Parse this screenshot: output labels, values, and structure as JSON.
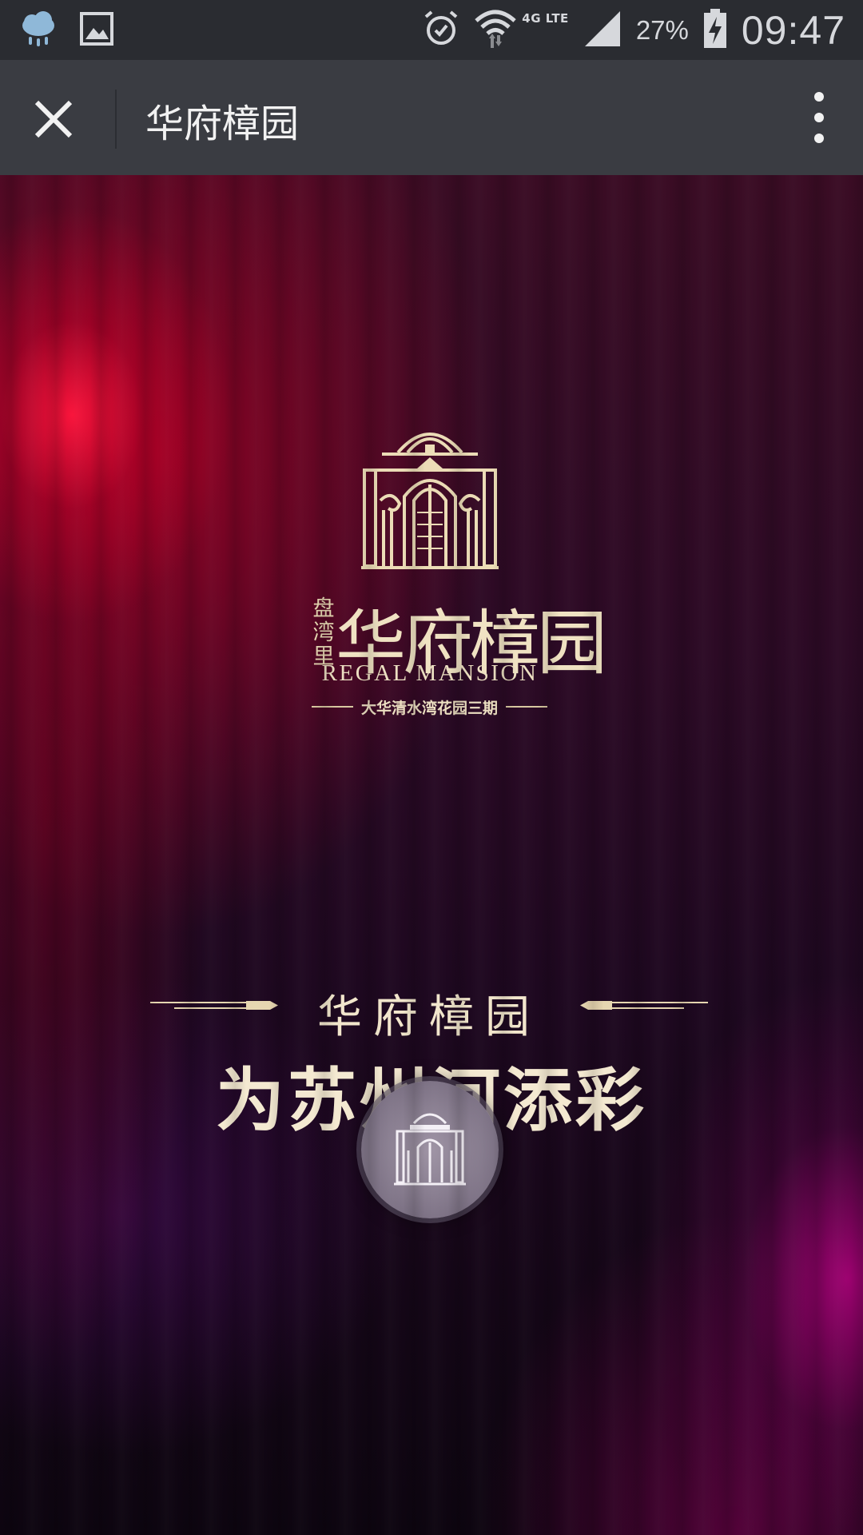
{
  "status_bar": {
    "network": "4G LTE",
    "battery": "27%",
    "time": "09:47",
    "icons": [
      "weather-rain-icon",
      "gallery-icon",
      "alarm-icon",
      "wifi-icon",
      "signal-icon",
      "battery-charging-icon"
    ]
  },
  "app_bar": {
    "title": "华府樟园",
    "close_icon": "close-icon",
    "more_icon": "more-vertical-icon"
  },
  "main": {
    "logo": {
      "small_text": "盘湾里",
      "name_cn": "华府樟园",
      "name_en": "REGAL MANSION",
      "subtitle": "大华清水湾花园三期"
    },
    "headline_line1": "华府樟园",
    "headline_line2": "为苏州河添彩"
  },
  "colors": {
    "status_bar_bg": "#2a2c31",
    "app_bar_bg": "#3a3c42",
    "gold_text": "#f0e2c2",
    "accent_red": "#e0102e"
  }
}
